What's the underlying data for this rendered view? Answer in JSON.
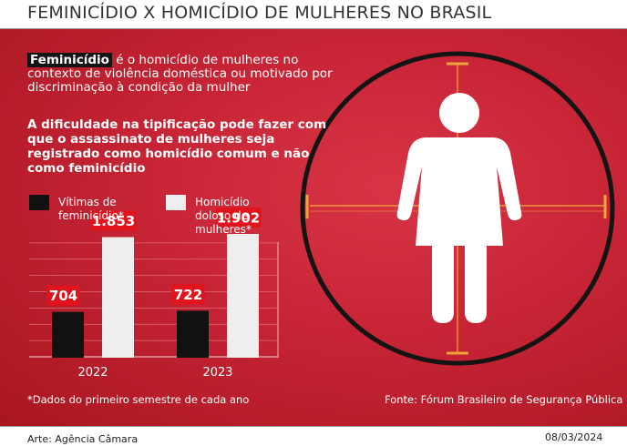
{
  "title": "FEMINICÍDIO X HOMICÍDIO DE MULHERES NO BRASIL",
  "intro": {
    "term": "Feminicídio",
    "text": " é o homicídio de mulheres no contexto de violência doméstica ou motivado por discriminação à condição da mulher"
  },
  "bold_text": "A dificuldade na tipificação pode fazer com que o assassinato de mulheres seja registrado como homicídio comum e não como feminicídio",
  "note": "*Dados do primeiro semestre de cada ano",
  "source": "Fonte: Fórum Brasileiro de Segurança Pública",
  "credit": "Arte: Agência Câmara",
  "date": "08/03/2024",
  "colors": {
    "background": "#c62435",
    "feminicidio": "#111111",
    "homicidio": "#eeeeee",
    "label_box": "#e1131c",
    "crosshair": "#f2a23a"
  },
  "chart_data": {
    "type": "bar",
    "categories": [
      "2022",
      "2023"
    ],
    "series": [
      {
        "name": "Vítimas de feminicídio*",
        "values": [
          704,
          722
        ],
        "labels": [
          "704",
          "722"
        ]
      },
      {
        "name": "Homicídio doloso de mulheres*",
        "values": [
          1853,
          1902
        ],
        "labels": [
          "1.853",
          "1.902"
        ]
      }
    ],
    "ylim": [
      0,
      2000
    ],
    "grid": true,
    "legend_placement": "top"
  }
}
